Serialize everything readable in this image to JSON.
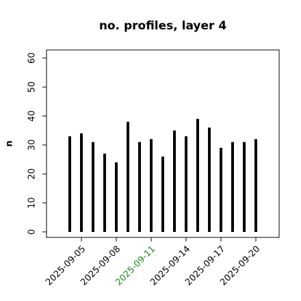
{
  "chart_data": {
    "type": "bar",
    "title": "no. profiles, layer 4",
    "ylabel": "n",
    "x": [
      "2025-09-04",
      "2025-09-05",
      "2025-09-06",
      "2025-09-07",
      "2025-09-08",
      "2025-09-09",
      "2025-09-10",
      "2025-09-11",
      "2025-09-12",
      "2025-09-13",
      "2025-09-14",
      "2025-09-15",
      "2025-09-16",
      "2025-09-17",
      "2025-09-18",
      "2025-09-19",
      "2025-09-20"
    ],
    "values": [
      33,
      34,
      31,
      27,
      24,
      38,
      31,
      32,
      26,
      35,
      33,
      39,
      36,
      29,
      31,
      31,
      32
    ],
    "color": "#000000",
    "xlim": [
      "2025-09-02",
      "2025-09-22"
    ],
    "xticks": [
      "2025-09-05",
      "2025-09-08",
      "2025-09-11",
      "2025-09-14",
      "2025-09-17",
      "2025-09-20"
    ],
    "highlight_tick": "2025-09-11",
    "highlight_color": "#228b22",
    "ylim": [
      -1.9,
      62.8
    ],
    "yticks": [
      0,
      10,
      20,
      30,
      40,
      50,
      60
    ]
  }
}
